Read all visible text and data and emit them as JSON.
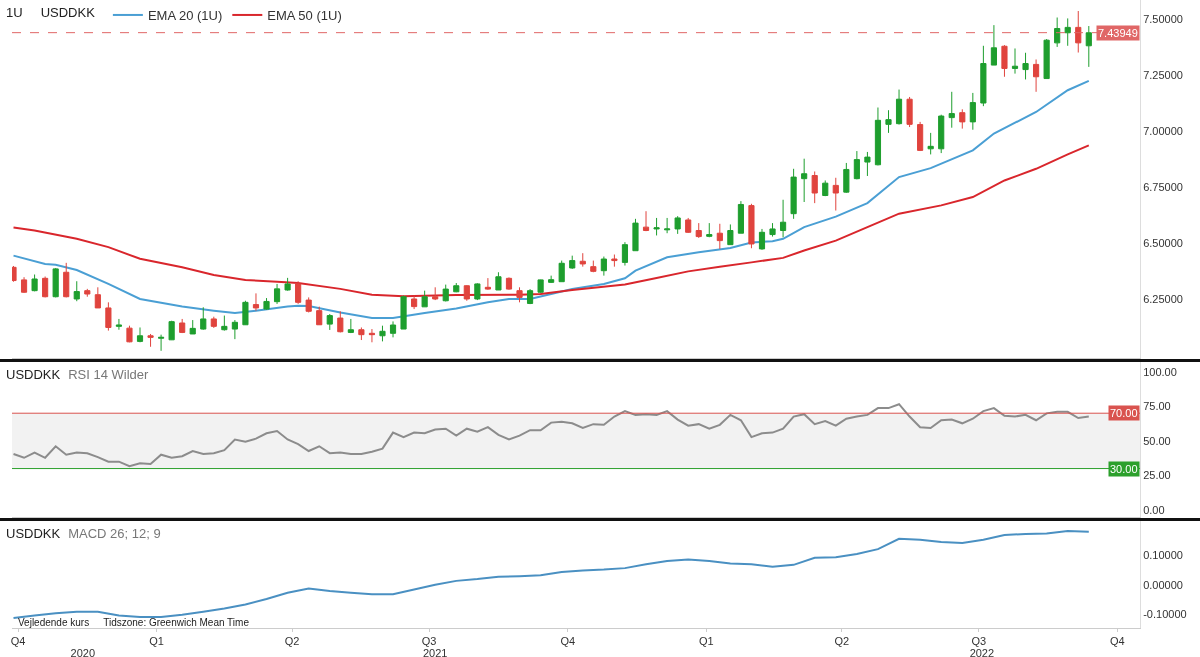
{
  "chart_data": [
    {
      "type": "candlestick",
      "title": "USDDKK",
      "annotations": [
        "1U"
      ],
      "legend": "top left",
      "tick_labels": "y",
      "xlim": [
        "2020-09-27",
        "2022-10-16"
      ],
      "ylim": [
        5.99,
        7.585
      ],
      "yticks": [
        {
          "value": 6.25,
          "label": "6.25000"
        },
        {
          "value": 6.5,
          "label": "6.50000"
        },
        {
          "value": 6.75,
          "label": "6.75000"
        },
        {
          "value": 7.0,
          "label": "7.00000"
        },
        {
          "value": 7.25,
          "label": "7.25000"
        },
        {
          "value": 7.5,
          "label": "7.50000"
        }
      ],
      "x": [
        "2020-09-28",
        "2020-10-05",
        "2020-10-12",
        "2020-10-19",
        "2020-10-26",
        "2020-11-02",
        "2020-11-09",
        "2020-11-16",
        "2020-11-23",
        "2020-11-30",
        "2020-12-07",
        "2020-12-14",
        "2020-12-21",
        "2020-12-28",
        "2021-01-04",
        "2021-01-11",
        "2021-01-18",
        "2021-01-25",
        "2021-02-01",
        "2021-02-08",
        "2021-02-15",
        "2021-02-22",
        "2021-03-01",
        "2021-03-08",
        "2021-03-15",
        "2021-03-22",
        "2021-03-29",
        "2021-04-05",
        "2021-04-12",
        "2021-04-19",
        "2021-04-26",
        "2021-05-03",
        "2021-05-10",
        "2021-05-17",
        "2021-05-24",
        "2021-05-31",
        "2021-06-07",
        "2021-06-14",
        "2021-06-21",
        "2021-06-28",
        "2021-07-05",
        "2021-07-12",
        "2021-07-19",
        "2021-07-26",
        "2021-08-02",
        "2021-08-09",
        "2021-08-16",
        "2021-08-23",
        "2021-08-30",
        "2021-09-06",
        "2021-09-13",
        "2021-09-20",
        "2021-09-27",
        "2021-10-04",
        "2021-10-11",
        "2021-10-18",
        "2021-10-25",
        "2021-11-01",
        "2021-11-08",
        "2021-11-15",
        "2021-11-22",
        "2021-11-29",
        "2021-12-06",
        "2021-12-13",
        "2021-12-20",
        "2021-12-27",
        "2022-01-03",
        "2022-01-10",
        "2022-01-17",
        "2022-01-24",
        "2022-01-31",
        "2022-02-07",
        "2022-02-14",
        "2022-02-21",
        "2022-02-28",
        "2022-03-07",
        "2022-03-14",
        "2022-03-21",
        "2022-03-28",
        "2022-04-04",
        "2022-04-11",
        "2022-04-18",
        "2022-04-25",
        "2022-05-02",
        "2022-05-09",
        "2022-05-16",
        "2022-05-23",
        "2022-05-30",
        "2022-06-06",
        "2022-06-13",
        "2022-06-20",
        "2022-06-27",
        "2022-07-04",
        "2022-07-11",
        "2022-07-18",
        "2022-07-25",
        "2022-08-01",
        "2022-08-08",
        "2022-08-15",
        "2022-08-22",
        "2022-08-29",
        "2022-09-05",
        "2022-09-12"
      ],
      "ohlc": [
        [
          6.394,
          6.4,
          6.33,
          6.335
        ],
        [
          6.338,
          6.35,
          6.28,
          6.283
        ],
        [
          6.29,
          6.362,
          6.287,
          6.342
        ],
        [
          6.345,
          6.353,
          6.26,
          6.263
        ],
        [
          6.263,
          6.391,
          6.26,
          6.387
        ],
        [
          6.372,
          6.414,
          6.26,
          6.263
        ],
        [
          6.253,
          6.332,
          6.243,
          6.286
        ],
        [
          6.29,
          6.298,
          6.263,
          6.275
        ],
        [
          6.272,
          6.305,
          6.213,
          6.213
        ],
        [
          6.213,
          6.238,
          6.112,
          6.126
        ],
        [
          6.131,
          6.164,
          6.116,
          6.137
        ],
        [
          6.123,
          6.134,
          6.06,
          6.062
        ],
        [
          6.064,
          6.126,
          6.06,
          6.089
        ],
        [
          6.089,
          6.097,
          6.04,
          6.082
        ],
        [
          6.078,
          6.094,
          6.022,
          6.082
        ],
        [
          6.071,
          6.156,
          6.07,
          6.152
        ],
        [
          6.146,
          6.164,
          6.101,
          6.104
        ],
        [
          6.097,
          6.159,
          6.097,
          6.122
        ],
        [
          6.119,
          6.216,
          6.116,
          6.164
        ],
        [
          6.164,
          6.174,
          6.124,
          6.131
        ],
        [
          6.116,
          6.179,
          6.112,
          6.131
        ],
        [
          6.119,
          6.159,
          6.074,
          6.149
        ],
        [
          6.138,
          6.245,
          6.137,
          6.238
        ],
        [
          6.228,
          6.278,
          6.201,
          6.213
        ],
        [
          6.208,
          6.257,
          6.205,
          6.242
        ],
        [
          6.241,
          6.32,
          6.231,
          6.298
        ],
        [
          6.293,
          6.347,
          6.29,
          6.32
        ],
        [
          6.32,
          6.332,
          6.231,
          6.238
        ],
        [
          6.248,
          6.26,
          6.193,
          6.198
        ],
        [
          6.201,
          6.219,
          6.137,
          6.138
        ],
        [
          6.141,
          6.186,
          6.115,
          6.179
        ],
        [
          6.168,
          6.198,
          6.104,
          6.107
        ],
        [
          6.104,
          6.164,
          6.101,
          6.116
        ],
        [
          6.116,
          6.126,
          6.07,
          6.094
        ],
        [
          6.1,
          6.119,
          6.06,
          6.094
        ],
        [
          6.089,
          6.134,
          6.064,
          6.109
        ],
        [
          6.1,
          6.153,
          6.082,
          6.137
        ],
        [
          6.119,
          6.268,
          6.119,
          6.263
        ],
        [
          6.253,
          6.268,
          6.208,
          6.219
        ],
        [
          6.218,
          6.29,
          6.218,
          6.263
        ],
        [
          6.263,
          6.305,
          6.248,
          6.253
        ],
        [
          6.245,
          6.317,
          6.242,
          6.297
        ],
        [
          6.285,
          6.324,
          6.283,
          6.312
        ],
        [
          6.312,
          6.314,
          6.245,
          6.253
        ],
        [
          6.253,
          6.323,
          6.248,
          6.32
        ],
        [
          6.305,
          6.346,
          6.294,
          6.297
        ],
        [
          6.293,
          6.372,
          6.293,
          6.352
        ],
        [
          6.345,
          6.349,
          6.294,
          6.297
        ],
        [
          6.29,
          6.305,
          6.238,
          6.26
        ],
        [
          6.233,
          6.297,
          6.23,
          6.29
        ],
        [
          6.283,
          6.339,
          6.28,
          6.338
        ],
        [
          6.327,
          6.357,
          6.324,
          6.339
        ],
        [
          6.33,
          6.424,
          6.33,
          6.412
        ],
        [
          6.391,
          6.446,
          6.387,
          6.424
        ],
        [
          6.421,
          6.457,
          6.397,
          6.409
        ],
        [
          6.397,
          6.424,
          6.372,
          6.376
        ],
        [
          6.379,
          6.442,
          6.357,
          6.431
        ],
        [
          6.431,
          6.451,
          6.397,
          6.424
        ],
        [
          6.416,
          6.506,
          6.402,
          6.495
        ],
        [
          6.468,
          6.61,
          6.468,
          6.591
        ],
        [
          6.573,
          6.644,
          6.555,
          6.558
        ],
        [
          6.565,
          6.614,
          6.536,
          6.57
        ],
        [
          6.561,
          6.614,
          6.546,
          6.565
        ],
        [
          6.565,
          6.622,
          6.543,
          6.614
        ],
        [
          6.605,
          6.614,
          6.547,
          6.55
        ],
        [
          6.558,
          6.591,
          6.525,
          6.531
        ],
        [
          6.532,
          6.591,
          6.528,
          6.54
        ],
        [
          6.546,
          6.588,
          6.476,
          6.513
        ],
        [
          6.495,
          6.585,
          6.495,
          6.558
        ],
        [
          6.546,
          6.689,
          6.546,
          6.674
        ],
        [
          6.669,
          6.677,
          6.479,
          6.498
        ],
        [
          6.476,
          6.565,
          6.472,
          6.55
        ],
        [
          6.54,
          6.591,
          6.531,
          6.565
        ],
        [
          6.558,
          6.695,
          6.528,
          6.595
        ],
        [
          6.633,
          6.833,
          6.61,
          6.796
        ],
        [
          6.789,
          6.878,
          6.685,
          6.811
        ],
        [
          6.803,
          6.821,
          6.68,
          6.725
        ],
        [
          6.714,
          6.781,
          6.711,
          6.769
        ],
        [
          6.759,
          6.793,
          6.647,
          6.725
        ],
        [
          6.729,
          6.859,
          6.726,
          6.83
        ],
        [
          6.789,
          6.912,
          6.786,
          6.874
        ],
        [
          6.863,
          6.908,
          6.801,
          6.885
        ],
        [
          6.851,
          7.106,
          6.848,
          7.049
        ],
        [
          7.031,
          7.094,
          6.993,
          7.052
        ],
        [
          7.034,
          7.186,
          7.03,
          7.143
        ],
        [
          7.143,
          7.153,
          7.019,
          7.031
        ],
        [
          7.03,
          7.042,
          6.912,
          6.915
        ],
        [
          6.922,
          6.993,
          6.897,
          6.933
        ],
        [
          6.922,
          7.074,
          6.903,
          7.068
        ],
        [
          7.061,
          7.176,
          7.016,
          7.079
        ],
        [
          7.083,
          7.098,
          7.012,
          7.042
        ],
        [
          7.042,
          7.171,
          7.007,
          7.128
        ],
        [
          7.126,
          7.381,
          7.112,
          7.302
        ],
        [
          7.295,
          7.473,
          7.295,
          7.372
        ],
        [
          7.379,
          7.384,
          7.243,
          7.28
        ],
        [
          7.28,
          7.369,
          7.257,
          7.29
        ],
        [
          7.275,
          7.35,
          7.231,
          7.302
        ],
        [
          7.298,
          7.32,
          7.176,
          7.243
        ],
        [
          7.235,
          7.411,
          7.235,
          7.406
        ],
        [
          7.394,
          7.507,
          7.376,
          7.458
        ],
        [
          7.439,
          7.503,
          7.381,
          7.463
        ],
        [
          7.463,
          7.536,
          7.351,
          7.394
        ],
        [
          7.381,
          7.469,
          7.287,
          7.439
        ]
      ],
      "colors": [
        "#e0443e",
        "#e0443e",
        "#1e9e2e",
        "#e0443e",
        "#1e9e2e",
        "#e0443e",
        "#1e9e2e",
        "#e0443e",
        "#e0443e",
        "#e0443e",
        "#1e9e2e",
        "#e0443e",
        "#1e9e2e",
        "#e0443e",
        "#1e9e2e",
        "#1e9e2e",
        "#e0443e",
        "#1e9e2e",
        "#1e9e2e",
        "#e0443e",
        "#1e9e2e",
        "#1e9e2e",
        "#1e9e2e",
        "#e0443e",
        "#1e9e2e",
        "#1e9e2e",
        "#1e9e2e",
        "#e0443e",
        "#e0443e",
        "#e0443e",
        "#1e9e2e",
        "#e0443e",
        "#1e9e2e",
        "#e0443e",
        "#e0443e",
        "#1e9e2e",
        "#1e9e2e",
        "#1e9e2e",
        "#e0443e",
        "#1e9e2e",
        "#e0443e",
        "#1e9e2e",
        "#1e9e2e",
        "#e0443e",
        "#1e9e2e",
        "#e0443e",
        "#1e9e2e",
        "#e0443e",
        "#e0443e",
        "#1e9e2e",
        "#1e9e2e",
        "#1e9e2e",
        "#1e9e2e",
        "#1e9e2e",
        "#e0443e",
        "#e0443e",
        "#1e9e2e",
        "#e0443e",
        "#1e9e2e",
        "#1e9e2e",
        "#e0443e",
        "#1e9e2e",
        "#1e9e2e",
        "#1e9e2e",
        "#e0443e",
        "#e0443e",
        "#1e9e2e",
        "#e0443e",
        "#1e9e2e",
        "#1e9e2e",
        "#e0443e",
        "#1e9e2e",
        "#1e9e2e",
        "#1e9e2e",
        "#1e9e2e",
        "#1e9e2e",
        "#e0443e",
        "#1e9e2e",
        "#e0443e",
        "#1e9e2e",
        "#1e9e2e",
        "#1e9e2e",
        "#1e9e2e",
        "#1e9e2e",
        "#1e9e2e",
        "#e0443e",
        "#e0443e",
        "#1e9e2e",
        "#1e9e2e",
        "#1e9e2e",
        "#e0443e",
        "#1e9e2e",
        "#1e9e2e",
        "#1e9e2e",
        "#e0443e",
        "#1e9e2e",
        "#1e9e2e",
        "#e0443e",
        "#1e9e2e",
        "#1e9e2e",
        "#1e9e2e",
        "#e0443e",
        "#1e9e2e"
      ],
      "series": [
        {
          "name": "EMA 20 (1U)",
          "type": "line",
          "color": "#4a9fd4",
          "x": [
            "2020-09-28",
            "2020-10-19",
            "2020-10-26",
            "2020-11-09",
            "2020-11-30",
            "2020-12-21",
            "2021-01-18",
            "2021-02-08",
            "2021-02-22",
            "2021-03-08",
            "2021-03-29",
            "2021-04-05",
            "2021-04-12",
            "2021-05-03",
            "2021-05-24",
            "2021-06-07",
            "2021-06-28",
            "2021-07-19",
            "2021-08-09",
            "2021-08-23",
            "2021-09-06",
            "2021-09-20",
            "2021-10-04",
            "2021-10-25",
            "2021-11-08",
            "2021-11-15",
            "2021-12-06",
            "2021-12-27",
            "2022-01-17",
            "2022-01-31",
            "2022-02-14",
            "2022-02-21",
            "2022-03-07",
            "2022-03-28",
            "2022-04-18",
            "2022-05-09",
            "2022-05-30",
            "2022-06-27",
            "2022-07-11",
            "2022-08-08",
            "2022-08-29",
            "2022-09-12"
          ],
          "values": [
            6.446,
            6.409,
            6.405,
            6.382,
            6.32,
            6.253,
            6.219,
            6.201,
            6.19,
            6.201,
            6.219,
            6.223,
            6.222,
            6.193,
            6.168,
            6.168,
            6.19,
            6.211,
            6.238,
            6.253,
            6.253,
            6.275,
            6.297,
            6.32,
            6.345,
            6.379,
            6.439,
            6.461,
            6.48,
            6.505,
            6.51,
            6.521,
            6.573,
            6.62,
            6.68,
            6.796,
            6.836,
            6.915,
            6.99,
            7.086,
            7.183,
            7.225
          ]
        },
        {
          "name": "EMA 50 (1U)",
          "type": "line",
          "color": "#d9262c",
          "x": [
            "2020-09-28",
            "2020-10-12",
            "2020-11-09",
            "2020-11-30",
            "2020-12-21",
            "2021-01-18",
            "2021-02-08",
            "2021-03-01",
            "2021-03-22",
            "2021-04-05",
            "2021-05-03",
            "2021-05-24",
            "2021-06-14",
            "2021-07-19",
            "2021-08-30",
            "2021-09-13",
            "2021-10-04",
            "2021-11-08",
            "2021-11-29",
            "2021-12-20",
            "2022-01-10",
            "2022-01-31",
            "2022-02-21",
            "2022-03-07",
            "2022-03-28",
            "2022-04-18",
            "2022-05-09",
            "2022-06-06",
            "2022-06-27",
            "2022-07-18",
            "2022-08-08",
            "2022-08-29",
            "2022-09-12"
          ],
          "values": [
            6.571,
            6.558,
            6.521,
            6.484,
            6.432,
            6.394,
            6.36,
            6.338,
            6.33,
            6.324,
            6.298,
            6.272,
            6.265,
            6.271,
            6.272,
            6.275,
            6.293,
            6.317,
            6.346,
            6.376,
            6.397,
            6.416,
            6.436,
            6.469,
            6.513,
            6.573,
            6.633,
            6.67,
            6.707,
            6.781,
            6.833,
            6.897,
            6.937
          ]
        }
      ],
      "ref_lines": [
        {
          "axis": "y",
          "value": 7.43949,
          "label": "7.43949",
          "color": "#e06666",
          "line_style": "dashed"
        }
      ]
    },
    {
      "type": "line",
      "title": "USDDKK",
      "subtitle": "RSI 14 Wilder",
      "tick_labels": "y",
      "xlim": [
        "2020-09-27",
        "2022-10-16"
      ],
      "ylim": [
        -5,
        107
      ],
      "yticks": [
        {
          "value": 0,
          "label": "0.00"
        },
        {
          "value": 25,
          "label": "25.00"
        },
        {
          "value": 50,
          "label": "50.00"
        },
        {
          "value": 75,
          "label": "75.00"
        },
        {
          "value": 100,
          "label": "100.00"
        }
      ],
      "x": [
        "2020-09-28",
        "2020-10-05",
        "2020-10-12",
        "2020-10-19",
        "2020-10-26",
        "2020-11-02",
        "2020-11-09",
        "2020-11-16",
        "2020-11-23",
        "2020-11-30",
        "2020-12-07",
        "2020-12-14",
        "2020-12-21",
        "2020-12-28",
        "2021-01-04",
        "2021-01-11",
        "2021-01-18",
        "2021-01-25",
        "2021-02-01",
        "2021-02-08",
        "2021-02-15",
        "2021-02-22",
        "2021-03-01",
        "2021-03-08",
        "2021-03-15",
        "2021-03-22",
        "2021-03-29",
        "2021-04-05",
        "2021-04-12",
        "2021-04-19",
        "2021-04-26",
        "2021-05-03",
        "2021-05-10",
        "2021-05-17",
        "2021-05-24",
        "2021-05-31",
        "2021-06-07",
        "2021-06-14",
        "2021-06-21",
        "2021-06-28",
        "2021-07-05",
        "2021-07-12",
        "2021-07-19",
        "2021-07-26",
        "2021-08-02",
        "2021-08-09",
        "2021-08-16",
        "2021-08-23",
        "2021-08-30",
        "2021-09-06",
        "2021-09-13",
        "2021-09-20",
        "2021-09-27",
        "2021-10-04",
        "2021-10-11",
        "2021-10-18",
        "2021-10-25",
        "2021-11-01",
        "2021-11-08",
        "2021-11-15",
        "2021-11-22",
        "2021-11-29",
        "2021-12-06",
        "2021-12-13",
        "2021-12-20",
        "2021-12-27",
        "2022-01-03",
        "2022-01-10",
        "2022-01-17",
        "2022-01-24",
        "2022-01-31",
        "2022-02-07",
        "2022-02-14",
        "2022-02-21",
        "2022-02-28",
        "2022-03-07",
        "2022-03-14",
        "2022-03-21",
        "2022-03-28",
        "2022-04-04",
        "2022-04-11",
        "2022-04-18",
        "2022-04-25",
        "2022-05-02",
        "2022-05-09",
        "2022-05-16",
        "2022-05-23",
        "2022-05-30",
        "2022-06-06",
        "2022-06-13",
        "2022-06-20",
        "2022-06-27",
        "2022-07-04",
        "2022-07-11",
        "2022-07-18",
        "2022-07-25",
        "2022-08-01",
        "2022-08-08",
        "2022-08-15",
        "2022-08-22",
        "2022-08-29",
        "2022-09-05",
        "2022-09-12"
      ],
      "series": [
        {
          "color": "#8c8c8c",
          "values": [
            40.5,
            37.8,
            41.6,
            37.8,
            46.1,
            40.0,
            41.6,
            41.1,
            38.3,
            35.0,
            35.0,
            31.7,
            33.9,
            33.3,
            40.0,
            37.8,
            38.9,
            42.7,
            40.5,
            41.1,
            43.3,
            51.0,
            49.4,
            51.6,
            55.5,
            57.1,
            51.0,
            47.7,
            42.7,
            46.1,
            41.1,
            41.6,
            40.5,
            40.5,
            42.2,
            44.4,
            56.0,
            52.7,
            56.0,
            55.5,
            58.2,
            58.8,
            53.8,
            58.8,
            56.6,
            59.9,
            54.4,
            51.0,
            53.8,
            57.7,
            57.7,
            63.2,
            63.8,
            62.7,
            59.3,
            62.1,
            61.6,
            67.6,
            71.5,
            68.8,
            69.3,
            68.8,
            71.5,
            65.4,
            61.0,
            62.1,
            58.8,
            61.6,
            68.8,
            64.9,
            52.7,
            55.5,
            56.0,
            58.8,
            67.6,
            69.3,
            62.1,
            64.3,
            61.0,
            66.0,
            67.6,
            68.8,
            73.7,
            73.7,
            76.5,
            67.6,
            59.9,
            59.3,
            64.9,
            65.4,
            62.7,
            66.0,
            71.5,
            73.7,
            68.2,
            67.6,
            68.8,
            64.9,
            69.9,
            71.0,
            71.0,
            66.5,
            67.6
          ]
        }
      ],
      "ref_lines": [
        {
          "axis": "y",
          "value": 70,
          "label": "70.00",
          "color": "#d9534f"
        },
        {
          "axis": "y",
          "value": 30,
          "label": "30.00",
          "color": "#2ca02c"
        }
      ],
      "bands": [
        {
          "axis": "y",
          "from": 30,
          "to": 70,
          "color": "#f2f2f2"
        }
      ]
    },
    {
      "type": "line",
      "title": "USDDKK",
      "subtitle": "MACD 26; 12; 9",
      "annotations": [
        "Vejledende kurs",
        "Tidszone: Greenwich Mean Time"
      ],
      "x2lim": [
        "2020-09-27",
        "2022-10-16"
      ],
      "x2ticks": [
        {
          "value": "2020-11-13",
          "label": "2020"
        },
        {
          "value": "2021-07-05",
          "label": "2021"
        },
        {
          "value": "2022-07-03",
          "label": "2022"
        }
      ],
      "xlim": [
        "2020-09-27",
        "2022-10-16"
      ],
      "xticks": [
        {
          "value": "2020-10-01",
          "label": "Q4"
        },
        {
          "value": "2021-01-01",
          "label": "Q1"
        },
        {
          "value": "2021-04-01",
          "label": "Q2"
        },
        {
          "value": "2021-07-01",
          "label": "Q3"
        },
        {
          "value": "2021-10-01",
          "label": "Q4"
        },
        {
          "value": "2022-01-01",
          "label": "Q1"
        },
        {
          "value": "2022-04-01",
          "label": "Q2"
        },
        {
          "value": "2022-07-01",
          "label": "Q3"
        },
        {
          "value": "2022-10-01",
          "label": "Q4"
        }
      ],
      "ylim": [
        -0.146,
        0.215
      ],
      "yticks": [
        {
          "value": -0.1,
          "label": "-0.10000"
        },
        {
          "value": 0,
          "label": "0.00000"
        },
        {
          "value": 0.1,
          "label": "0.10000"
        }
      ],
      "x": [
        "2020-09-28",
        "2020-10-12",
        "2020-10-26",
        "2020-11-09",
        "2020-11-23",
        "2020-12-07",
        "2020-12-21",
        "2021-01-04",
        "2021-01-18",
        "2021-02-01",
        "2021-02-15",
        "2021-03-01",
        "2021-03-15",
        "2021-03-29",
        "2021-04-12",
        "2021-04-26",
        "2021-05-10",
        "2021-05-24",
        "2021-06-07",
        "2021-06-21",
        "2021-07-05",
        "2021-07-19",
        "2021-08-02",
        "2021-08-16",
        "2021-08-30",
        "2021-09-13",
        "2021-09-27",
        "2021-10-11",
        "2021-10-25",
        "2021-11-08",
        "2021-11-22",
        "2021-12-06",
        "2021-12-20",
        "2022-01-03",
        "2022-01-17",
        "2022-01-31",
        "2022-02-14",
        "2022-02-28",
        "2022-03-14",
        "2022-03-28",
        "2022-04-11",
        "2022-04-25",
        "2022-05-09",
        "2022-05-23",
        "2022-06-06",
        "2022-06-20",
        "2022-07-04",
        "2022-07-18",
        "2022-08-01",
        "2022-08-15",
        "2022-08-29",
        "2022-09-12"
      ],
      "series": [
        {
          "color": "#4a90c2",
          "values": [
            -0.112,
            -0.104,
            -0.096,
            -0.091,
            -0.091,
            -0.104,
            -0.109,
            -0.109,
            -0.101,
            -0.091,
            -0.08,
            -0.067,
            -0.048,
            -0.027,
            -0.013,
            -0.021,
            -0.027,
            -0.032,
            -0.032,
            -0.016,
            0.0,
            0.013,
            0.019,
            0.027,
            0.029,
            0.032,
            0.043,
            0.048,
            0.051,
            0.056,
            0.069,
            0.08,
            0.085,
            0.08,
            0.072,
            0.069,
            0.061,
            0.067,
            0.091,
            0.093,
            0.104,
            0.12,
            0.155,
            0.152,
            0.144,
            0.141,
            0.152,
            0.168,
            0.171,
            0.173,
            0.181,
            0.179
          ]
        }
      ]
    }
  ]
}
